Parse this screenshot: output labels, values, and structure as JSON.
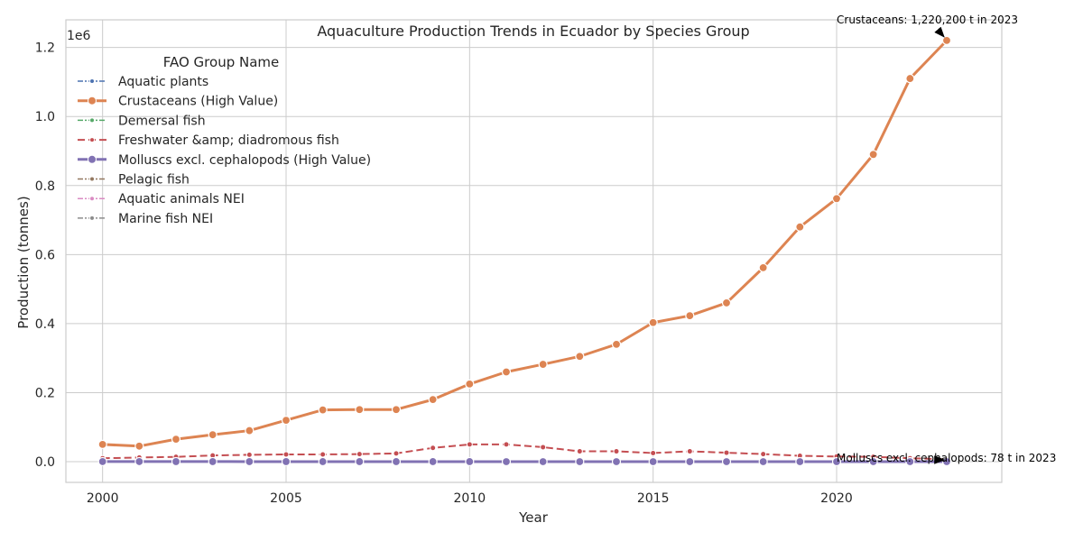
{
  "chart_data": {
    "type": "line",
    "title": "Aquaculture Production Trends in Ecuador by Species Group",
    "xlabel": "Year",
    "ylabel": "Production (tonnes)",
    "y_offset_label": "1e6",
    "xlim": [
      1999,
      2024.5
    ],
    "ylim": [
      -0.06,
      1.28
    ],
    "y_scale": 1000000,
    "x_ticks": [
      2000,
      2005,
      2010,
      2015,
      2020
    ],
    "x_tick_labels": [
      "2000",
      "2005",
      "2010",
      "2015",
      "2020"
    ],
    "y_ticks": [
      0.0,
      0.2,
      0.4,
      0.6,
      0.8,
      1.0,
      1.2
    ],
    "y_tick_labels": [
      "0.0",
      "0.2",
      "0.4",
      "0.6",
      "0.8",
      "1.0",
      "1.2"
    ],
    "grid": true,
    "legend_title": "FAO Group Name",
    "legend_position": "upper-left",
    "x": [
      2000,
      2001,
      2002,
      2003,
      2004,
      2005,
      2006,
      2007,
      2008,
      2009,
      2010,
      2011,
      2012,
      2013,
      2014,
      2015,
      2016,
      2017,
      2018,
      2019,
      2020,
      2021,
      2022,
      2023
    ],
    "series": [
      {
        "name": "Aquatic plants",
        "color": "#4c72b0",
        "dash": "6,2,2,2",
        "width": 1.5,
        "marker": "small",
        "values": [
          0,
          0,
          0,
          0,
          0,
          0,
          0,
          0,
          0,
          0,
          0,
          0,
          0,
          0,
          0,
          0,
          0,
          0,
          0,
          0,
          0,
          0,
          0,
          0
        ]
      },
      {
        "name": "Crustaceans (High Value)",
        "color": "#dd8452",
        "dash": "",
        "width": 3,
        "marker": "large",
        "values": [
          50000,
          45000,
          65000,
          78000,
          90000,
          120000,
          150000,
          151000,
          151000,
          180000,
          225000,
          260000,
          282000,
          305000,
          340000,
          403000,
          423000,
          460000,
          562000,
          680000,
          762000,
          890000,
          1110000,
          1220200
        ]
      },
      {
        "name": "Demersal fish",
        "color": "#55a868",
        "dash": "6,2,2,2",
        "width": 1.5,
        "marker": "small",
        "values": [
          0,
          0,
          0,
          0,
          0,
          0,
          0,
          0,
          0,
          0,
          0,
          0,
          0,
          0,
          0,
          0,
          0,
          0,
          0,
          0,
          0,
          0,
          0,
          0
        ]
      },
      {
        "name": "Freshwater &amp; diadromous fish",
        "color": "#c44e52",
        "dash": "8,4",
        "width": 2,
        "marker": "small",
        "values": [
          10000,
          12000,
          14000,
          18000,
          20000,
          21000,
          21000,
          22000,
          24000,
          40000,
          50000,
          50000,
          42000,
          30000,
          30000,
          25000,
          30000,
          26000,
          22000,
          17000,
          15000,
          14000,
          10000,
          7000
        ]
      },
      {
        "name": "Molluscs excl. cephalopods (High Value)",
        "color": "#8172b3",
        "dash": "",
        "width": 3,
        "marker": "large",
        "values": [
          300,
          280,
          260,
          250,
          240,
          230,
          220,
          210,
          200,
          190,
          180,
          170,
          160,
          150,
          140,
          130,
          120,
          110,
          100,
          95,
          90,
          85,
          80,
          78
        ]
      },
      {
        "name": "Pelagic fish",
        "color": "#937860",
        "dash": "6,2,2,2",
        "width": 1.5,
        "marker": "small",
        "values": [
          0,
          0,
          0,
          0,
          0,
          0,
          0,
          0,
          0,
          0,
          0,
          0,
          0,
          0,
          0,
          0,
          0,
          0,
          0,
          0,
          0,
          0,
          0,
          0
        ]
      },
      {
        "name": "Aquatic animals NEI",
        "color": "#da8bc3",
        "dash": "6,2,2,2",
        "width": 1.5,
        "marker": "small",
        "values": [
          0,
          0,
          0,
          0,
          0,
          0,
          0,
          0,
          0,
          0,
          0,
          0,
          0,
          0,
          0,
          0,
          0,
          0,
          0,
          0,
          0,
          0,
          0,
          0
        ]
      },
      {
        "name": "Marine fish NEI",
        "color": "#8c8c8c",
        "dash": "6,2,2,2",
        "width": 1.5,
        "marker": "small",
        "values": [
          0,
          0,
          0,
          0,
          0,
          0,
          0,
          0,
          0,
          0,
          0,
          0,
          0,
          0,
          0,
          0,
          0,
          0,
          0,
          0,
          0,
          0,
          0,
          0
        ]
      }
    ],
    "annotations": [
      {
        "text": "Crustaceans: 1,220,200 t in 2023",
        "x": 2023,
        "y": 1220200,
        "text_x": 2020,
        "text_y": 1350000
      },
      {
        "text": "Molluscs excl. cephalopods: 78 t in 2023",
        "x": 2023,
        "y": 78,
        "text_x": 2020,
        "text_y": 5000
      }
    ]
  }
}
